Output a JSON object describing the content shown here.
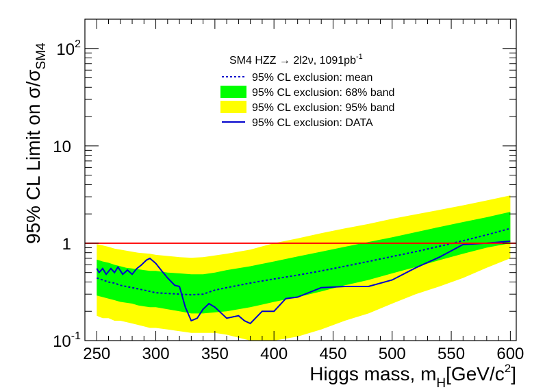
{
  "chart_data": {
    "type": "line",
    "title": "SM4 HZZ → 2l2ν, 1091pb",
    "title_superscript": "-1",
    "xlabel": "Higgs mass, m",
    "xlabel_subscript": "H",
    "xlabel_units_prefix": "[GeV/c",
    "xlabel_units_superscript": "2",
    "xlabel_units_suffix": "]",
    "ylabel": "95% CL Limit on σ/σ",
    "ylabel_subscript": "SM4",
    "xlim": [
      240,
      605
    ],
    "ylim": [
      0.1,
      200
    ],
    "yscale": "log",
    "x_ticks": [
      250,
      300,
      350,
      400,
      450,
      500,
      550,
      600
    ],
    "x_tick_labels": [
      "250",
      "300",
      "350",
      "400",
      "450",
      "500",
      "550",
      "600"
    ],
    "y_ticks": [
      {
        "value": 0.1,
        "base": "10",
        "exp": "-1"
      },
      {
        "value": 1,
        "base": "1",
        "exp": ""
      },
      {
        "value": 10,
        "base": "10",
        "exp": ""
      },
      {
        "value": 100,
        "base": "10",
        "exp": "2"
      }
    ],
    "reference_line": {
      "y": 1,
      "color": "#ff0000"
    },
    "legend": [
      {
        "key": "mean",
        "label": "95% CL exclusion: mean",
        "style": "dashed",
        "color": "#0000cc"
      },
      {
        "key": "band68",
        "label": "95% CL exclusion: 68% band",
        "style": "fill",
        "color": "#00ff00"
      },
      {
        "key": "band95",
        "label": "95% CL exclusion: 95% band",
        "style": "fill",
        "color": "#ffff00"
      },
      {
        "key": "data",
        "label": "95% CL exclusion: DATA",
        "style": "solid",
        "color": "#0000cc"
      }
    ],
    "series": {
      "band95": {
        "x": [
          250,
          255,
          260,
          265,
          270,
          275,
          280,
          285,
          290,
          295,
          300,
          310,
          320,
          330,
          340,
          350,
          360,
          380,
          400,
          420,
          440,
          460,
          480,
          500,
          520,
          540,
          560,
          580,
          600
        ],
        "upper": [
          0.98,
          0.95,
          0.92,
          0.88,
          0.86,
          0.84,
          0.82,
          0.8,
          0.79,
          0.78,
          0.76,
          0.74,
          0.72,
          0.71,
          0.72,
          0.75,
          0.78,
          0.86,
          1.0,
          1.12,
          1.27,
          1.42,
          1.58,
          1.78,
          1.98,
          2.2,
          2.45,
          2.75,
          3.1
        ],
        "lower": [
          0.18,
          0.17,
          0.17,
          0.16,
          0.16,
          0.155,
          0.15,
          0.145,
          0.14,
          0.135,
          0.135,
          0.13,
          0.125,
          0.12,
          0.12,
          0.12,
          0.115,
          0.1,
          0.1,
          0.11,
          0.13,
          0.16,
          0.19,
          0.24,
          0.3,
          0.36,
          0.44,
          0.56,
          0.7
        ]
      },
      "band68": {
        "x": [
          250,
          255,
          260,
          265,
          270,
          275,
          280,
          285,
          290,
          295,
          300,
          310,
          320,
          330,
          340,
          350,
          360,
          380,
          400,
          420,
          440,
          460,
          480,
          500,
          520,
          540,
          560,
          580,
          600
        ],
        "upper": [
          0.68,
          0.65,
          0.63,
          0.6,
          0.58,
          0.56,
          0.55,
          0.54,
          0.53,
          0.52,
          0.52,
          0.5,
          0.49,
          0.48,
          0.48,
          0.5,
          0.53,
          0.58,
          0.65,
          0.73,
          0.82,
          0.92,
          1.03,
          1.15,
          1.3,
          1.47,
          1.65,
          1.85,
          2.1
        ],
        "lower": [
          0.29,
          0.28,
          0.27,
          0.26,
          0.25,
          0.245,
          0.24,
          0.23,
          0.225,
          0.22,
          0.22,
          0.21,
          0.2,
          0.19,
          0.19,
          0.195,
          0.2,
          0.22,
          0.25,
          0.28,
          0.32,
          0.37,
          0.42,
          0.49,
          0.57,
          0.67,
          0.78,
          0.9,
          1.0
        ]
      },
      "mean": {
        "x": [
          250,
          255,
          260,
          265,
          270,
          275,
          280,
          285,
          290,
          295,
          300,
          310,
          320,
          330,
          340,
          350,
          360,
          380,
          400,
          420,
          440,
          460,
          480,
          500,
          520,
          540,
          560,
          580,
          600
        ],
        "y": [
          0.44,
          0.42,
          0.4,
          0.39,
          0.37,
          0.36,
          0.35,
          0.34,
          0.33,
          0.32,
          0.31,
          0.305,
          0.3,
          0.295,
          0.3,
          0.33,
          0.35,
          0.39,
          0.43,
          0.47,
          0.52,
          0.58,
          0.65,
          0.73,
          0.82,
          0.93,
          1.06,
          1.22,
          1.42
        ]
      },
      "data": {
        "x": [
          250,
          252,
          255,
          258,
          262,
          265,
          268,
          272,
          276,
          280,
          284,
          288,
          292,
          295,
          300,
          305,
          310,
          316,
          320,
          325,
          330,
          335,
          340,
          345,
          350,
          360,
          370,
          375,
          380,
          390,
          395,
          400,
          410,
          420,
          440,
          460,
          480,
          500,
          520,
          540,
          560,
          580,
          600
        ],
        "y": [
          0.55,
          0.5,
          0.55,
          0.48,
          0.55,
          0.5,
          0.57,
          0.48,
          0.53,
          0.48,
          0.55,
          0.6,
          0.67,
          0.7,
          0.62,
          0.52,
          0.44,
          0.37,
          0.36,
          0.22,
          0.16,
          0.17,
          0.21,
          0.24,
          0.22,
          0.17,
          0.18,
          0.16,
          0.15,
          0.2,
          0.2,
          0.2,
          0.27,
          0.28,
          0.35,
          0.36,
          0.36,
          0.42,
          0.56,
          0.72,
          0.97,
          1.0,
          1.05
        ]
      }
    }
  }
}
